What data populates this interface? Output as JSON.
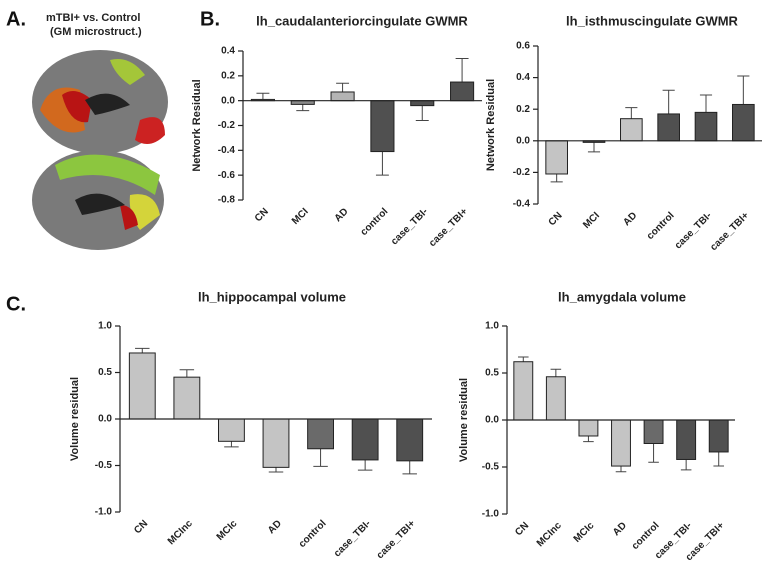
{
  "panel_labels": [
    "A.",
    "B.",
    "C."
  ],
  "panel_a_caption": [
    "mTBI+ vs. Control",
    "(GM microstruct.)"
  ],
  "chart_data": [
    {
      "type": "bar",
      "title": "lh_caudalanteriorcingulate GWMR",
      "y_label": "Network Residual",
      "categories": [
        "CN",
        "MCI",
        "AD",
        "control",
        "case_TBI-",
        "case_TBI+"
      ],
      "values": [
        0.01,
        -0.03,
        0.07,
        -0.41,
        -0.04,
        0.15
      ],
      "errors": [
        0.05,
        0.05,
        0.07,
        0.19,
        0.12,
        0.19
      ],
      "colors": [
        "#c4c4c4",
        "#8a8a8a",
        "#b4b4b4",
        "#505050",
        "#505050",
        "#505050"
      ],
      "ylim": [
        -0.8,
        0.4
      ],
      "yticks": [
        -0.8,
        -0.6,
        -0.4,
        -0.2,
        {
          "value": 0,
          "label": "0.0"
        },
        0.2,
        0.4
      ]
    },
    {
      "type": "bar",
      "title": "lh_isthmuscingulate GWMR",
      "y_label": "Network Residual",
      "categories": [
        "CN",
        "MCI",
        "AD",
        "control",
        "case_TBI-",
        "case_TBI+"
      ],
      "values": [
        -0.21,
        -0.01,
        0.14,
        0.17,
        0.18,
        0.23
      ],
      "errors": [
        0.05,
        0.06,
        0.07,
        0.15,
        0.11,
        0.18
      ],
      "colors": [
        "#c4c4c4",
        "#505050",
        "#c4c4c4",
        "#505050",
        "#505050",
        "#505050"
      ],
      "ylim": [
        -0.4,
        0.6
      ],
      "yticks": [
        -0.4,
        -0.2,
        {
          "value": 0,
          "label": "0.0"
        },
        0.2,
        0.4,
        0.6
      ]
    },
    {
      "type": "bar",
      "title": "lh_hippocampal volume",
      "y_label": "Volume residual",
      "categories": [
        "CN",
        "MCInc",
        "MCIc",
        "AD",
        "control",
        "case_TBI-",
        "case_TBI+"
      ],
      "values": [
        0.71,
        0.45,
        -0.24,
        -0.52,
        -0.32,
        -0.44,
        -0.45
      ],
      "errors": [
        0.05,
        0.08,
        0.06,
        0.05,
        0.19,
        0.11,
        0.14
      ],
      "colors": [
        "#c4c4c4",
        "#c4c4c4",
        "#c4c4c4",
        "#c4c4c4",
        "#6a6a6a",
        "#505050",
        "#505050"
      ],
      "ylim": [
        -1,
        1
      ],
      "yticks": [
        {
          "value": -1,
          "label": "-1.0"
        },
        -0.5,
        {
          "value": 0,
          "label": "0.0"
        },
        0.5,
        {
          "value": 1,
          "label": "1.0"
        }
      ]
    },
    {
      "type": "bar",
      "title": "lh_amygdala volume",
      "y_label": "Volume residual",
      "categories": [
        "CN",
        "MCInc",
        "MCIc",
        "AD",
        "control",
        "case_TBI-",
        "case_TBI+"
      ],
      "values": [
        0.62,
        0.46,
        -0.17,
        -0.49,
        -0.25,
        -0.42,
        -0.34
      ],
      "errors": [
        0.05,
        0.08,
        0.06,
        0.06,
        0.2,
        0.11,
        0.15
      ],
      "colors": [
        "#c4c4c4",
        "#c4c4c4",
        "#c4c4c4",
        "#c4c4c4",
        "#6a6a6a",
        "#505050",
        "#505050"
      ],
      "ylim": [
        -1,
        1
      ],
      "yticks": [
        {
          "value": -1,
          "label": "-1.0"
        },
        -0.5,
        {
          "value": 0,
          "label": "0.0"
        },
        0.5,
        {
          "value": 1,
          "label": "1.0"
        }
      ]
    }
  ]
}
